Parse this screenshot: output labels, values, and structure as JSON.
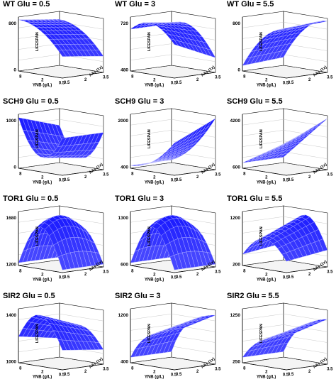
{
  "figure": {
    "axis_labels": {
      "x": "YNB (g/L)",
      "y": "AAs (1x)",
      "z": "LIFESPAN"
    },
    "x_ticks": [
      "8",
      "2",
      "0.5"
    ],
    "y_ticks": [
      "0.5",
      "2",
      "3.5"
    ],
    "surface_color": "#1f1fff",
    "mesh_color": "#c8c8ff"
  },
  "chart_data": [
    {
      "type": "surface3d",
      "title": "WT Glu = 0.5",
      "z_ticks": [
        "0",
        "800"
      ],
      "zlim": [
        0,
        900
      ],
      "shape": "wt05"
    },
    {
      "type": "surface3d",
      "title": "WT Glu = 3",
      "z_ticks": [
        "480",
        "720"
      ],
      "zlim": [
        460,
        780
      ],
      "shape": "wt3"
    },
    {
      "type": "surface3d",
      "title": "WT Glu = 5.5",
      "z_ticks": [
        "0",
        "800"
      ],
      "zlim": [
        0,
        900
      ],
      "shape": "wt55"
    },
    {
      "type": "surface3d",
      "title": "SCH9 Glu = 0.5",
      "z_ticks": [
        "0",
        "1000"
      ],
      "zlim": [
        0,
        1150
      ],
      "shape": "bowl"
    },
    {
      "type": "surface3d",
      "title": "SCH9 Glu = 3",
      "z_ticks": [
        "400",
        "2000"
      ],
      "zlim": [
        300,
        2300
      ],
      "shape": "rise"
    },
    {
      "type": "surface3d",
      "title": "SCH9 Glu = 5.5",
      "z_ticks": [
        "600",
        "4200"
      ],
      "zlim": [
        500,
        4500
      ],
      "shape": "rise2"
    },
    {
      "type": "surface3d",
      "title": "TOR1 Glu = 0.5",
      "z_ticks": [
        "1200",
        "1680"
      ],
      "zlim": [
        1180,
        1720
      ],
      "shape": "dome"
    },
    {
      "type": "surface3d",
      "title": "TOR1 Glu = 3",
      "z_ticks": [
        "600",
        "1300"
      ],
      "zlim": [
        560,
        1360
      ],
      "shape": "dome"
    },
    {
      "type": "surface3d",
      "title": "TOR1 Glu = 5.5",
      "z_ticks": [
        "200",
        "1200"
      ],
      "zlim": [
        150,
        1350
      ],
      "shape": "dome2"
    },
    {
      "type": "surface3d",
      "title": "SIR2 Glu = 0.5",
      "z_ticks": [
        "1000",
        "1400"
      ],
      "zlim": [
        980,
        1480
      ],
      "shape": "tent"
    },
    {
      "type": "surface3d",
      "title": "SIR2 Glu = 3",
      "z_ticks": [
        "400",
        "1200"
      ],
      "zlim": [
        360,
        1300
      ],
      "shape": "sat"
    },
    {
      "type": "surface3d",
      "title": "SIR2 Glu = 5.5",
      "z_ticks": [
        "250",
        "1250"
      ],
      "zlim": [
        200,
        1350
      ],
      "shape": "sat2"
    }
  ]
}
